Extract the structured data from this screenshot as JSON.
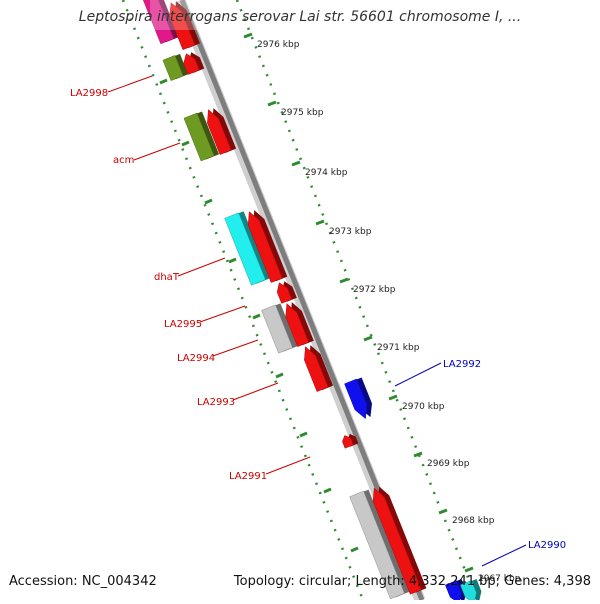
{
  "title": "Leptospira interrogans serovar Lai str. 56601 chromosome I, ...",
  "footer": {
    "accession": "Accession: NC_004342",
    "topology": "Topology: circular; Length: 4,332,241 bp; Genes: 4,398"
  },
  "colors": {
    "backbone": "#8a8a8a",
    "ruler": "#2e8b2e",
    "reverse_label": "#cc0000",
    "forward_label": "#0000bb"
  },
  "scale_ticks": [
    "2976 kbp",
    "2975 kbp",
    "2974 kbp",
    "2973 kbp",
    "2972 kbp",
    "2971 kbp",
    "2970 kbp",
    "2969 kbp",
    "2968 kbp",
    "2967 kbp"
  ],
  "gene_labels": [
    {
      "text": "LA2998",
      "strand": "reverse"
    },
    {
      "text": "acm",
      "strand": "reverse"
    },
    {
      "text": "dhaT",
      "strand": "reverse"
    },
    {
      "text": "LA2995",
      "strand": "reverse"
    },
    {
      "text": "LA2994",
      "strand": "reverse"
    },
    {
      "text": "LA2993",
      "strand": "reverse"
    },
    {
      "text": "LA2991",
      "strand": "reverse"
    },
    {
      "text": "LA2992",
      "strand": "forward"
    },
    {
      "text": "LA2990",
      "strand": "forward"
    }
  ]
}
